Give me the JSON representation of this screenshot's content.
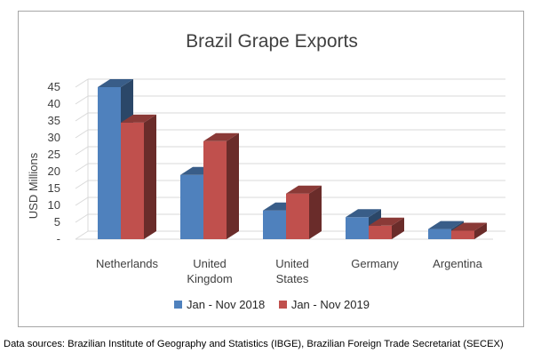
{
  "chart_data": {
    "type": "bar",
    "title": "Brazil Grape Exports",
    "xlabel": "",
    "ylabel": "USD Millions",
    "ylim": [
      0,
      45
    ],
    "yticks": [
      "-",
      "5",
      "10",
      "15",
      "20",
      "25",
      "30",
      "35",
      "40",
      "45"
    ],
    "categories": [
      [
        "Netherlands"
      ],
      [
        "United",
        "Kingdom"
      ],
      [
        "United",
        "States"
      ],
      [
        "Germany"
      ],
      [
        "Argentina"
      ]
    ],
    "series": [
      {
        "name": "Jan - Nov 2018",
        "color": "#4f81bd",
        "values": [
          45,
          19,
          8.5,
          6.5,
          3
        ]
      },
      {
        "name": "Jan - Nov 2019",
        "color": "#c0504d",
        "values": [
          34.5,
          29,
          13.5,
          4,
          2.5
        ]
      }
    ],
    "grid": true,
    "legend_position": "bottom",
    "style": "3d-clustered"
  },
  "source_note": "Data sources:  Brazilian Institute of Geography and Statistics (IBGE), Brazilian Foreign Trade Secretariat (SECEX)"
}
